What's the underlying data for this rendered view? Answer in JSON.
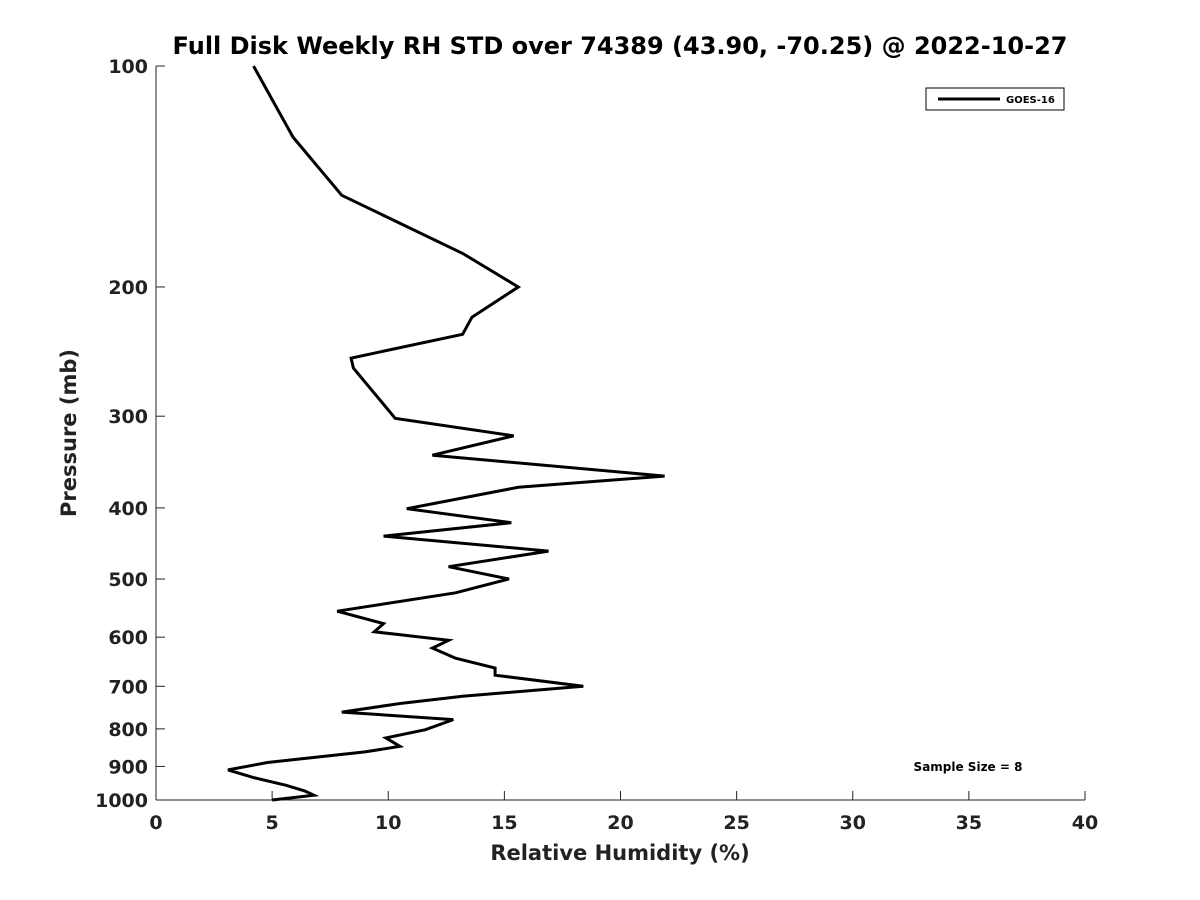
{
  "chart_data": {
    "type": "line",
    "title": "Full Disk Weekly RH STD over 74389 (43.90, -70.25) @ 2022-10-27",
    "xlabel": "Relative Humidity (%)",
    "ylabel": "Pressure (mb)",
    "xlim": [
      0,
      40
    ],
    "ylim": [
      1000,
      100
    ],
    "y_scale": "log",
    "x_ticks": [
      0,
      5,
      10,
      15,
      20,
      25,
      30,
      35,
      40
    ],
    "y_ticks": [
      100,
      200,
      300,
      400,
      500,
      600,
      700,
      800,
      900,
      1000
    ],
    "grid": false,
    "legend_position": "top-right",
    "annotation": "Sample Size = 8",
    "series": [
      {
        "name": "GOES-16",
        "color": "#000000",
        "points": [
          [
            4.2,
            100
          ],
          [
            5.9,
            125
          ],
          [
            8.0,
            150
          ],
          [
            13.2,
            180
          ],
          [
            15.6,
            200
          ],
          [
            13.6,
            220
          ],
          [
            13.2,
            232
          ],
          [
            8.4,
            250
          ],
          [
            8.5,
            258
          ],
          [
            10.3,
            302
          ],
          [
            15.4,
            319
          ],
          [
            11.9,
            339
          ],
          [
            21.9,
            362
          ],
          [
            15.6,
            375
          ],
          [
            10.8,
            401
          ],
          [
            15.3,
            419
          ],
          [
            9.8,
            437
          ],
          [
            16.9,
            458
          ],
          [
            12.6,
            481
          ],
          [
            15.2,
            500
          ],
          [
            12.9,
            522
          ],
          [
            7.8,
            553
          ],
          [
            9.8,
            575
          ],
          [
            9.4,
            590
          ],
          [
            12.6,
            606
          ],
          [
            11.9,
            621
          ],
          [
            12.9,
            641
          ],
          [
            14.6,
            661
          ],
          [
            14.6,
            676
          ],
          [
            18.4,
            700
          ],
          [
            13.2,
            722
          ],
          [
            10.6,
            738
          ],
          [
            8.0,
            759
          ],
          [
            12.8,
            777
          ],
          [
            11.6,
            802
          ],
          [
            9.9,
            823
          ],
          [
            10.5,
            845
          ],
          [
            9.0,
            860
          ],
          [
            4.8,
            889
          ],
          [
            3.1,
            910
          ],
          [
            4.2,
            932
          ],
          [
            5.6,
            955
          ],
          [
            6.4,
            972
          ],
          [
            6.8,
            985
          ],
          [
            5.0,
            1000
          ]
        ]
      }
    ]
  }
}
